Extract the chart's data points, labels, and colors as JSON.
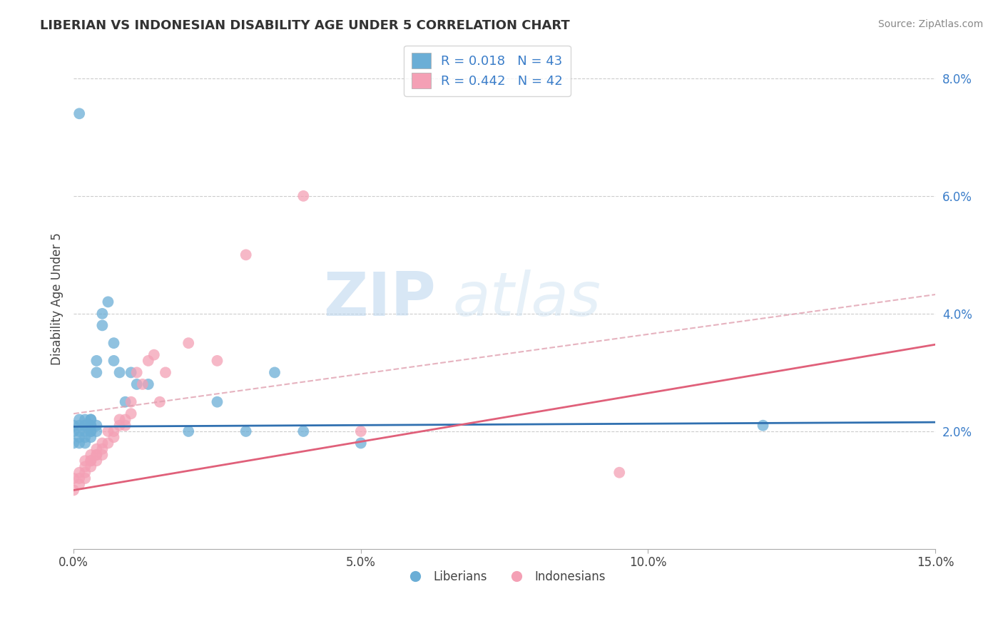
{
  "title": "LIBERIAN VS INDONESIAN DISABILITY AGE UNDER 5 CORRELATION CHART",
  "source": "Source: ZipAtlas.com",
  "ylabel": "Disability Age Under 5",
  "xlim": [
    0.0,
    0.15
  ],
  "ylim": [
    0.0,
    0.085
  ],
  "xticks": [
    0.0,
    0.05,
    0.1,
    0.15
  ],
  "xticklabels": [
    "0.0%",
    "5.0%",
    "10.0%",
    "15.0%"
  ],
  "yticks": [
    0.02,
    0.04,
    0.06,
    0.08
  ],
  "yticklabels": [
    "2.0%",
    "4.0%",
    "6.0%",
    "8.0%"
  ],
  "liberian_R": 0.018,
  "liberian_N": 43,
  "indonesian_R": 0.442,
  "indonesian_N": 42,
  "liberian_color": "#6baed6",
  "indonesian_color": "#f4a0b5",
  "trendline_liberian_color": "#3070b0",
  "trendline_indonesian_color": "#e0607a",
  "trendline_dashed_color": "#e0a0b0",
  "watermark_zip": "ZIP",
  "watermark_atlas": "atlas",
  "liberian_x": [
    0.0,
    0.0,
    0.0,
    0.001,
    0.001,
    0.001,
    0.001,
    0.001,
    0.002,
    0.002,
    0.002,
    0.002,
    0.002,
    0.002,
    0.003,
    0.003,
    0.003,
    0.003,
    0.003,
    0.003,
    0.003,
    0.004,
    0.004,
    0.004,
    0.004,
    0.005,
    0.005,
    0.006,
    0.007,
    0.007,
    0.008,
    0.009,
    0.01,
    0.011,
    0.013,
    0.02,
    0.025,
    0.03,
    0.035,
    0.04,
    0.05,
    0.12,
    0.001
  ],
  "liberian_y": [
    0.02,
    0.018,
    0.021,
    0.021,
    0.022,
    0.02,
    0.019,
    0.018,
    0.022,
    0.021,
    0.02,
    0.021,
    0.018,
    0.019,
    0.021,
    0.022,
    0.02,
    0.019,
    0.021,
    0.022,
    0.02,
    0.03,
    0.032,
    0.02,
    0.021,
    0.04,
    0.038,
    0.042,
    0.035,
    0.032,
    0.03,
    0.025,
    0.03,
    0.028,
    0.028,
    0.02,
    0.025,
    0.02,
    0.03,
    0.02,
    0.018,
    0.021,
    0.074
  ],
  "indonesian_x": [
    0.0,
    0.0,
    0.001,
    0.001,
    0.001,
    0.002,
    0.002,
    0.002,
    0.002,
    0.003,
    0.003,
    0.003,
    0.003,
    0.004,
    0.004,
    0.004,
    0.004,
    0.005,
    0.005,
    0.005,
    0.006,
    0.006,
    0.007,
    0.007,
    0.008,
    0.008,
    0.009,
    0.009,
    0.01,
    0.01,
    0.011,
    0.012,
    0.013,
    0.014,
    0.015,
    0.016,
    0.02,
    0.025,
    0.03,
    0.04,
    0.095,
    0.05
  ],
  "indonesian_y": [
    0.012,
    0.01,
    0.013,
    0.012,
    0.011,
    0.014,
    0.013,
    0.012,
    0.015,
    0.015,
    0.014,
    0.016,
    0.015,
    0.016,
    0.015,
    0.017,
    0.016,
    0.016,
    0.018,
    0.017,
    0.018,
    0.02,
    0.02,
    0.019,
    0.021,
    0.022,
    0.022,
    0.021,
    0.023,
    0.025,
    0.03,
    0.028,
    0.032,
    0.033,
    0.025,
    0.03,
    0.035,
    0.032,
    0.05,
    0.06,
    0.013,
    0.02
  ]
}
